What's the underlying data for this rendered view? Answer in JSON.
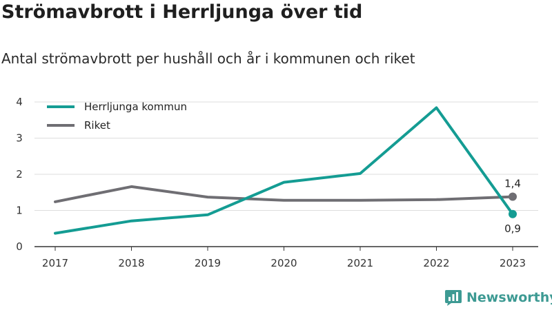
{
  "title": "Strömavbrott i Herrljunga över tid",
  "subtitle": "Antal strömavbrott per hushåll och år i kommunen och riket",
  "brand": {
    "name": "Newsworthy",
    "icon": "newsworthy-logo-icon",
    "color": "#3d9a93"
  },
  "chart_data": {
    "type": "line",
    "title": "",
    "xlabel": "",
    "ylabel": "",
    "categories": [
      "2017",
      "2018",
      "2019",
      "2020",
      "2021",
      "2022",
      "2023"
    ],
    "series": [
      {
        "name": "Herrljunga kommun",
        "color": "#149c93",
        "values": [
          0.37,
          0.71,
          0.88,
          1.78,
          2.02,
          3.84,
          0.9
        ],
        "end_label": "0,9"
      },
      {
        "name": "Riket",
        "color": "#6f6e73",
        "values": [
          1.24,
          1.66,
          1.37,
          1.28,
          1.28,
          1.3,
          1.38
        ],
        "end_label": "1,4"
      }
    ],
    "ylim": [
      0,
      4
    ],
    "yticks": [
      "0",
      "1",
      "2",
      "3",
      "4"
    ],
    "grid": true,
    "legend": "top-left"
  }
}
